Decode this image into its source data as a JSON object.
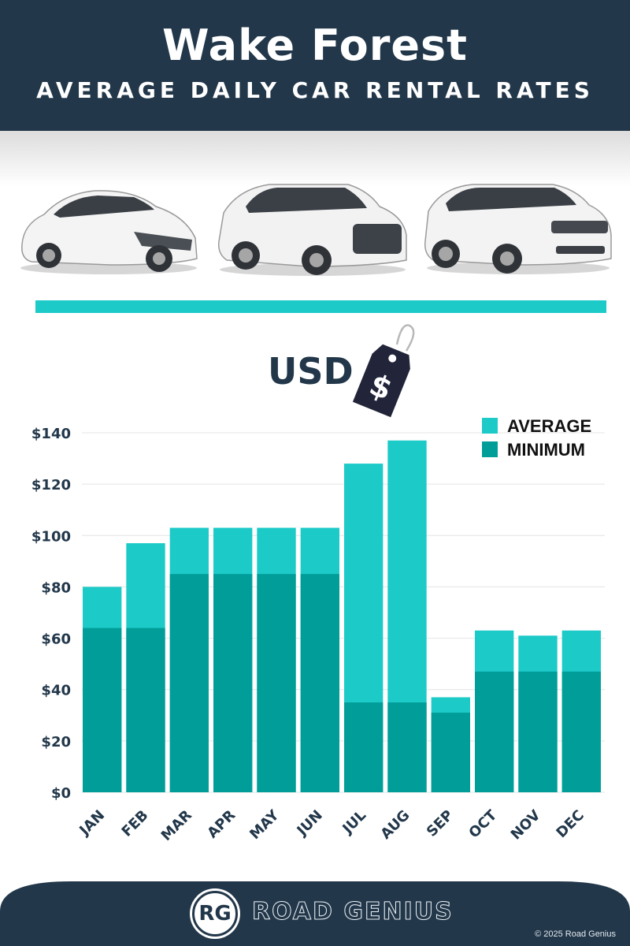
{
  "header": {
    "title": "Wake Forest",
    "subtitle": "AVERAGE DAILY CAR RENTAL RATES"
  },
  "currency": {
    "label": "USD",
    "tag_symbol": "$"
  },
  "chart_data": {
    "type": "bar",
    "stacked": "overlay",
    "categories": [
      "JAN",
      "FEB",
      "MAR",
      "APR",
      "MAY",
      "JUN",
      "JUL",
      "AUG",
      "SEP",
      "OCT",
      "NOV",
      "DEC"
    ],
    "series": [
      {
        "name": "AVERAGE",
        "color": "#1ccac8",
        "values": [
          80,
          97,
          103,
          103,
          103,
          103,
          128,
          137,
          37,
          63,
          61,
          63
        ]
      },
      {
        "name": "MINIMUM",
        "color": "#019e99",
        "values": [
          64,
          64,
          85,
          85,
          85,
          85,
          35,
          35,
          31,
          47,
          47,
          47
        ]
      }
    ],
    "ylim": [
      0,
      140
    ],
    "yticks": [
      {
        "value": 0,
        "label": "$0"
      },
      {
        "value": 20,
        "label": "$20"
      },
      {
        "value": 40,
        "label": "$40"
      },
      {
        "value": 60,
        "label": "$60"
      },
      {
        "value": 80,
        "label": "$80"
      },
      {
        "value": 100,
        "label": "$100"
      },
      {
        "value": 120,
        "label": "$120"
      },
      {
        "value": 140,
        "label": "$140"
      }
    ],
    "grid": true,
    "legend_position": "top-right"
  },
  "footer": {
    "logo_letters": "RG",
    "brand": "ROAD GENIUS",
    "copyright": "© 2025 Road Genius"
  },
  "colors": {
    "navy": "#22374a",
    "teal_light": "#1ccac8",
    "teal_dark": "#019e99"
  }
}
